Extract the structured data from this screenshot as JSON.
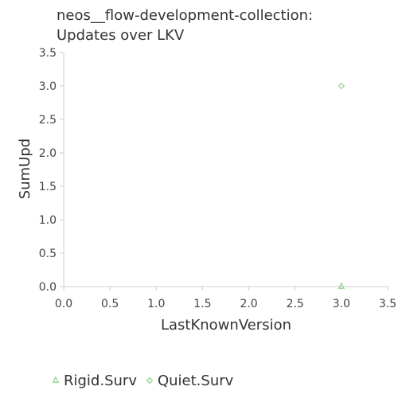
{
  "chart_data": {
    "type": "scatter",
    "title": [
      "neos__flow-development-collection:",
      "Updates over LKV"
    ],
    "xlabel": "LastKnownVersion",
    "ylabel": "SumUpd",
    "xlim": [
      0,
      3.5
    ],
    "ylim": [
      0,
      3.5
    ],
    "xticks": [
      "0.0",
      "0.5",
      "1.0",
      "1.5",
      "2.0",
      "2.5",
      "3.0",
      "3.5"
    ],
    "yticks": [
      "0.0",
      "0.5",
      "1.0",
      "1.5",
      "2.0",
      "2.5",
      "3.0",
      "3.5"
    ],
    "grid": false,
    "legend_position": "bottom",
    "series": [
      {
        "name": "Rigid.Surv",
        "marker": "triangle",
        "color": "#9ed89a",
        "points": [
          [
            3.0,
            0.0
          ]
        ]
      },
      {
        "name": "Quiet.Surv",
        "marker": "diamond",
        "color": "#9ed89a",
        "points": [
          [
            3.0,
            3.0
          ]
        ]
      }
    ]
  }
}
